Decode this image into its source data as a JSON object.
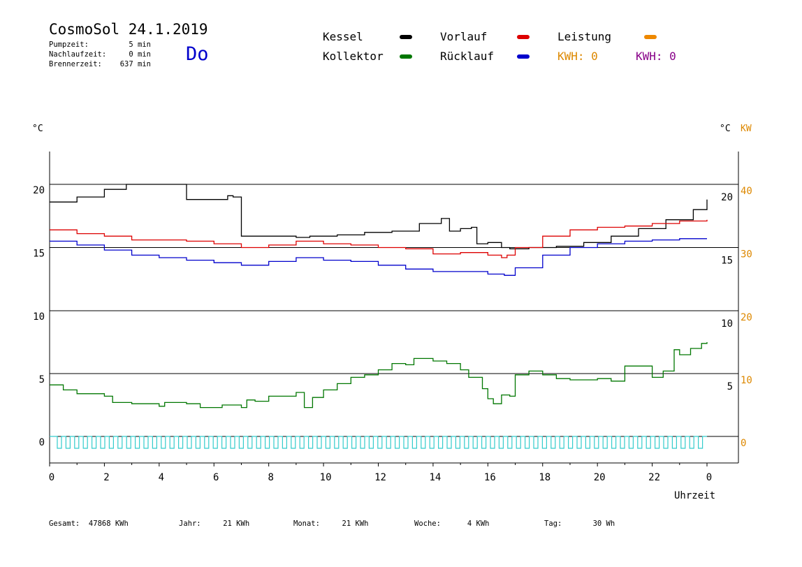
{
  "header": {
    "title": "CosmoSol 24.1.2019",
    "weekday": "Do",
    "stats": [
      {
        "label": "Pumpzeit:",
        "value": "5 min"
      },
      {
        "label": "Nachlaufzeit:",
        "value": "0 min"
      },
      {
        "label": "Brennerzeit:",
        "value": "637 min"
      }
    ]
  },
  "legend": {
    "kessel": "Kessel",
    "vorlauf": "Vorlauf",
    "leistung": "Leistung",
    "kollektor": "Kollektor",
    "ruecklauf": "Rücklauf",
    "kwh1": "KWH: 0",
    "kwh2": "KWH: 0"
  },
  "colors": {
    "kessel": "#000000",
    "vorlauf": "#dd0000",
    "ruecklauf": "#0000cc",
    "kollektor": "#007700",
    "leistung": "#ee8800",
    "kwh1": "#dd8800",
    "kwh2": "#880088",
    "pump": "#33cccc",
    "axis_right_kw": "#dd8800"
  },
  "axes": {
    "left_unit": "°C",
    "right_unit": "°C",
    "right_unit_kw": "KW",
    "xlabel": "Uhrzeit"
  },
  "footer": [
    {
      "label": "Gesamt:",
      "value": "47868 KWh"
    },
    {
      "label": "Jahr:",
      "value": "21 KWh"
    },
    {
      "label": "Monat:",
      "value": "21 KWh"
    },
    {
      "label": "Woche:",
      "value": "4 KWh"
    },
    {
      "label": "Tag:",
      "value": "30 Wh"
    }
  ],
  "chart_data": {
    "type": "line",
    "xlim": [
      0,
      24
    ],
    "x_ticks": [
      "0",
      "2",
      "4",
      "6",
      "8",
      "10",
      "12",
      "14",
      "16",
      "18",
      "20",
      "22",
      "0"
    ],
    "top_panel": {
      "ylim": [
        10,
        20
      ],
      "left_ticks": [
        "20",
        "15"
      ],
      "right_ticks": [
        "20",
        "15"
      ],
      "right_kw_ticks": [
        "40",
        "30"
      ]
    },
    "bottom_panel": {
      "ylim": [
        0,
        10
      ],
      "left_ticks": [
        "10",
        "5",
        "0"
      ],
      "right_ticks": [
        "10",
        "5"
      ],
      "right_kw_ticks": [
        "20",
        "10",
        "0"
      ]
    },
    "series": [
      {
        "name": "Kessel",
        "key": "kessel",
        "panel": "top",
        "x": [
          0,
          1,
          2,
          2.8,
          4.8,
          5,
          5.5,
          6.5,
          6.7,
          7,
          7.5,
          9,
          9.5,
          10.5,
          11.5,
          12.5,
          13.5,
          14.3,
          14.6,
          15,
          15.4,
          15.6,
          16,
          16.5,
          16.8,
          17.5,
          18.5,
          19.5,
          20.5,
          21.5,
          22.5,
          23.5,
          24
        ],
        "y": [
          18.6,
          19,
          19.6,
          20,
          20,
          18.8,
          18.8,
          19.1,
          19,
          15.9,
          15.9,
          15.8,
          15.9,
          16,
          16.2,
          16.3,
          16.9,
          17.3,
          16.3,
          16.5,
          16.6,
          15.3,
          15.4,
          15,
          14.9,
          15,
          15.1,
          15.4,
          15.9,
          16.5,
          17.2,
          18,
          18.8
        ]
      },
      {
        "name": "Vorlauf",
        "key": "vorlauf",
        "panel": "top",
        "x": [
          0,
          1,
          2,
          3,
          4,
          5,
          6,
          7,
          8,
          9,
          10,
          11,
          12,
          13,
          14,
          15,
          16,
          16.5,
          16.7,
          17,
          18,
          19,
          20,
          21,
          22,
          23,
          24
        ],
        "y": [
          16.4,
          16.1,
          15.9,
          15.6,
          15.6,
          15.5,
          15.3,
          15,
          15.2,
          15.5,
          15.3,
          15.2,
          15,
          14.9,
          14.5,
          14.6,
          14.4,
          14.2,
          14.4,
          15,
          15.9,
          16.4,
          16.6,
          16.7,
          16.9,
          17.1,
          17.2
        ]
      },
      {
        "name": "Rücklauf",
        "key": "ruecklauf",
        "panel": "top",
        "x": [
          0,
          1,
          2,
          3,
          4,
          5,
          6,
          7,
          8,
          9,
          10,
          11,
          12,
          13,
          14,
          15,
          16,
          16.6,
          17,
          18,
          19,
          20,
          21,
          22,
          23,
          24
        ],
        "y": [
          15.5,
          15.2,
          14.8,
          14.4,
          14.2,
          14,
          13.8,
          13.6,
          13.9,
          14.2,
          14,
          13.9,
          13.6,
          13.3,
          13.1,
          13.1,
          12.9,
          12.8,
          13.4,
          14.4,
          15,
          15.3,
          15.5,
          15.6,
          15.7,
          15.7
        ]
      },
      {
        "name": "Kollektor",
        "key": "kollektor",
        "panel": "bottom",
        "x": [
          0,
          0.5,
          1,
          2,
          2.3,
          3,
          3.5,
          4,
          4.2,
          5,
          5.5,
          6.3,
          7,
          7.2,
          7.5,
          8,
          9,
          9.3,
          9.6,
          10,
          10.5,
          11,
          11.5,
          12,
          12.5,
          13,
          13.3,
          14,
          14.5,
          15,
          15.3,
          15.8,
          16,
          16.2,
          16.5,
          16.8,
          17,
          17.5,
          18,
          18.5,
          19,
          20,
          20.5,
          21,
          22,
          22.4,
          22.8,
          23,
          23.4,
          23.8,
          24
        ],
        "y": [
          4.1,
          3.7,
          3.4,
          3.2,
          2.7,
          2.6,
          2.6,
          2.4,
          2.7,
          2.6,
          2.3,
          2.5,
          2.3,
          2.9,
          2.8,
          3.2,
          3.5,
          2.3,
          3.1,
          3.7,
          4.2,
          4.7,
          4.9,
          5.3,
          5.8,
          5.7,
          6.2,
          6,
          5.8,
          5.3,
          4.7,
          3.8,
          3,
          2.6,
          3.3,
          3.2,
          4.9,
          5.2,
          4.9,
          4.6,
          4.5,
          4.6,
          4.4,
          5.6,
          4.7,
          5.2,
          6.9,
          6.5,
          7.0,
          7.4,
          7.5
        ]
      }
    ]
  }
}
